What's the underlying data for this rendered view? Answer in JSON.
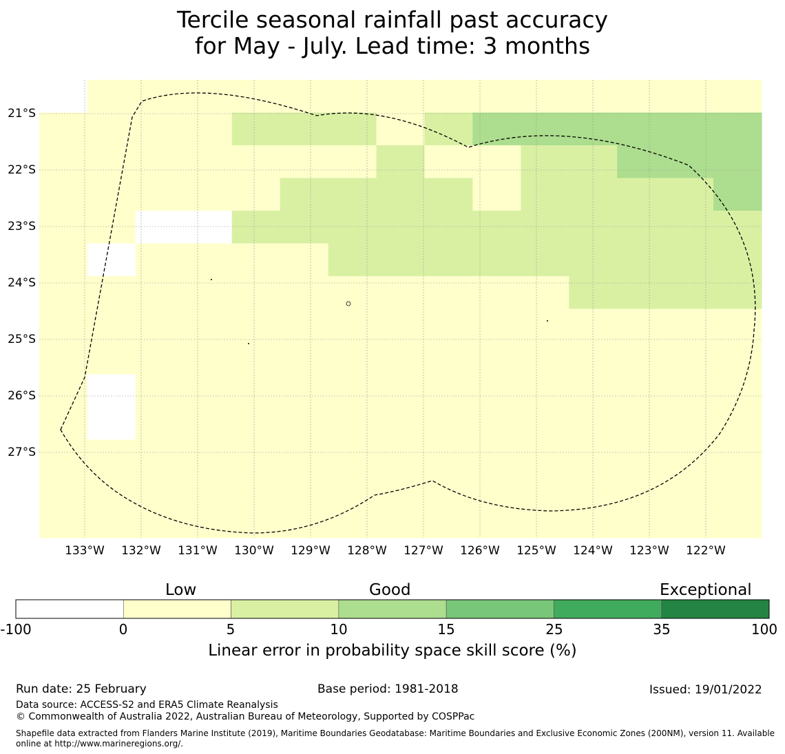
{
  "title": {
    "line1": "Tercile seasonal rainfall past accuracy",
    "line2": "for May - July. Lead time: 3 months"
  },
  "map": {
    "lat_labels": [
      "21°S",
      "22°S",
      "23°S",
      "24°S",
      "25°S",
      "26°S",
      "27°S"
    ],
    "lat_values": [
      -21,
      -22,
      -23,
      -24,
      -25,
      -26,
      -27
    ],
    "lon_labels": [
      "133°W",
      "132°W",
      "131°W",
      "130°W",
      "129°W",
      "128°W",
      "127°W",
      "126°W",
      "125°W",
      "124°W",
      "123°W",
      "122°W"
    ],
    "lon_values": [
      -133,
      -132,
      -131,
      -130,
      -129,
      -128,
      -127,
      -126,
      -125,
      -124,
      -123,
      -122
    ],
    "lon_range": [
      -133.8,
      -121.0
    ],
    "lat_range": [
      -28.5,
      -20.4
    ],
    "grid_cols": 15,
    "grid_rows": 14,
    "category_colors": [
      "#ffffff",
      "#ffffcc",
      "#d9f0a3",
      "#addd8e",
      "#78c679",
      "#41ab5d",
      "#238443"
    ],
    "cell_categories": [
      "011111111111111",
      "111122212333333",
      "111111121122333",
      "111112222122223",
      "110022222222222",
      "101111222222222",
      "111111111112222",
      "111111111111111",
      "111111111111111",
      "101111111111111",
      "101111111111111",
      "111111111111111",
      "111111111111111",
      "111111111111111"
    ],
    "boundary_label": "Exclusive Economic Zone boundary (200NM)"
  },
  "colorbar": {
    "categories": [
      "Low",
      "Good",
      "Exceptional"
    ],
    "ticks": [
      "-100",
      "0",
      "5",
      "10",
      "15",
      "25",
      "35",
      "100"
    ],
    "colors": [
      "#ffffff",
      "#ffffcc",
      "#d9f0a3",
      "#addd8e",
      "#78c679",
      "#41ab5d",
      "#238443"
    ],
    "label": "Linear error in probability space skill score (%)"
  },
  "footer": {
    "run_date": "Run date: 25 February",
    "base_period": "Base period: 1981-2018",
    "issued": "Issued: 19/01/2022",
    "data_source": "Data source: ACCESS-S2 and ERA5 Climate Reanalysis",
    "copyright": "© Commonwealth of Australia 2022, Australian Bureau of Meteorology, Supported by COSPPac",
    "shapefile_line1": "Shapefile data extracted from Flanders Marine Institute (2019), Maritime Boundaries Geodatabase: Maritime Boundaries and Exclusive Economic Zones (200NM), version 11. Available",
    "shapefile_line2": "online at http://www.marineregions.org/."
  }
}
